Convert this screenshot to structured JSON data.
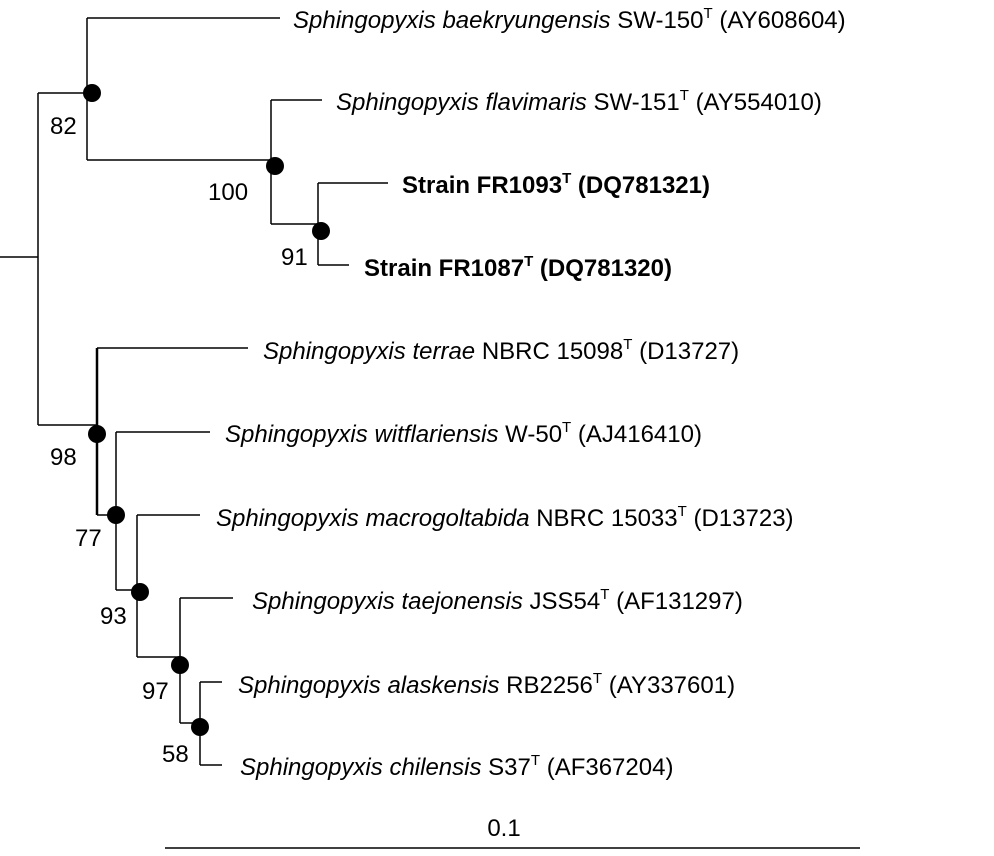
{
  "taxa": {
    "baekryungensis": {
      "genus": "Sphingopyxis",
      "species": "baekryungensis",
      "strain": "SW-150",
      "sup": "T",
      "accession": "(AY608604)"
    },
    "flavimaris": {
      "genus": "Sphingopyxis",
      "species": "flavimaris",
      "strain": "SW-151",
      "sup": "T",
      "accession": "(AY554010)"
    },
    "fr1093": {
      "name": "Strain FR1093",
      "sup": "T",
      "accession": "(DQ781321)"
    },
    "fr1087": {
      "name": "Strain FR1087",
      "sup": "T",
      "accession": "(DQ781320)"
    },
    "terrae": {
      "genus": "Sphingopyxis",
      "species": "terrae",
      "strain": "NBRC 15098",
      "sup": "T",
      "accession": "(D13727)"
    },
    "witflariensis": {
      "genus": "Sphingopyxis",
      "species": "witflariensis",
      "strain": "W-50",
      "sup": "T",
      "accession": "(AJ416410)"
    },
    "macrogoltabida": {
      "genus": "Sphingopyxis",
      "species": "macrogoltabida",
      "strain": "NBRC 15033",
      "sup": "T",
      "accession": "(D13723)"
    },
    "taejonensis": {
      "genus": "Sphingopyxis",
      "species": "taejonensis",
      "strain": "JSS54",
      "sup": "T",
      "accession": "(AF131297)"
    },
    "alaskensis": {
      "genus": "Sphingopyxis",
      "species": "alaskensis",
      "strain": "RB2256",
      "sup": "T",
      "accession": "(AY337601)"
    },
    "chilensis": {
      "genus": "Sphingopyxis",
      "species": "chilensis",
      "strain": "S37",
      "sup": "T",
      "accession": "(AF367204)"
    }
  },
  "bootstrap": {
    "n82": "82",
    "n100": "100",
    "n91": "91",
    "n98": "98",
    "n77": "77",
    "n93": "93",
    "n97": "97",
    "n58": "58"
  },
  "scale_bar": {
    "label": "0.1"
  }
}
